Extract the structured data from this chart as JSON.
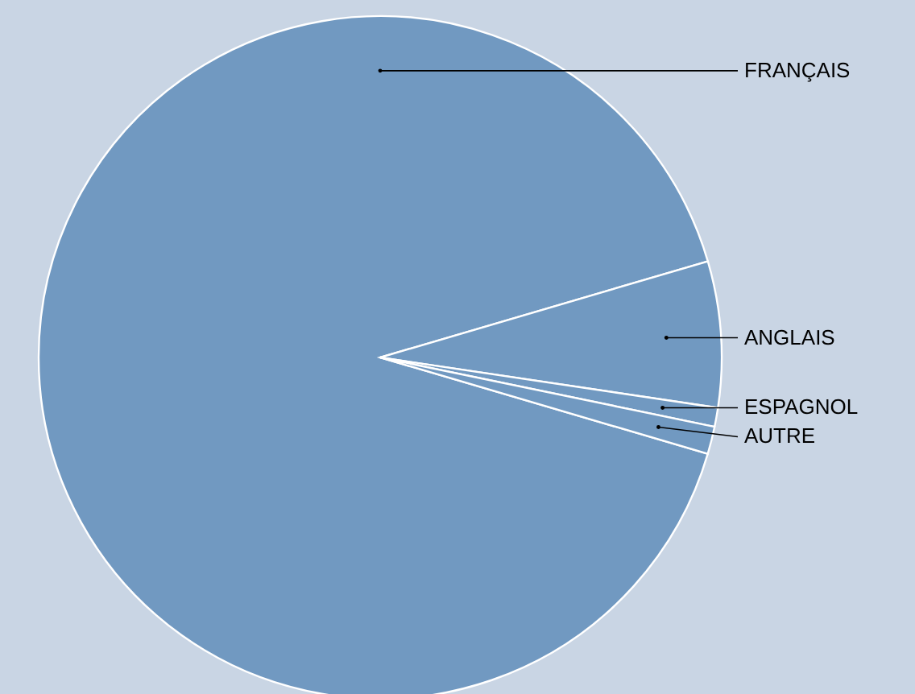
{
  "chart_data": {
    "type": "pie",
    "categories": [
      "FRANÇAIS",
      "ANGLAIS",
      "ESPAGNOL",
      "AUTRE"
    ],
    "values": [
      90.9,
      6.9,
      0.9,
      1.3
    ],
    "colors": [
      "#7199c1",
      "#7199c1",
      "#7199c1",
      "#7199c1"
    ]
  }
}
